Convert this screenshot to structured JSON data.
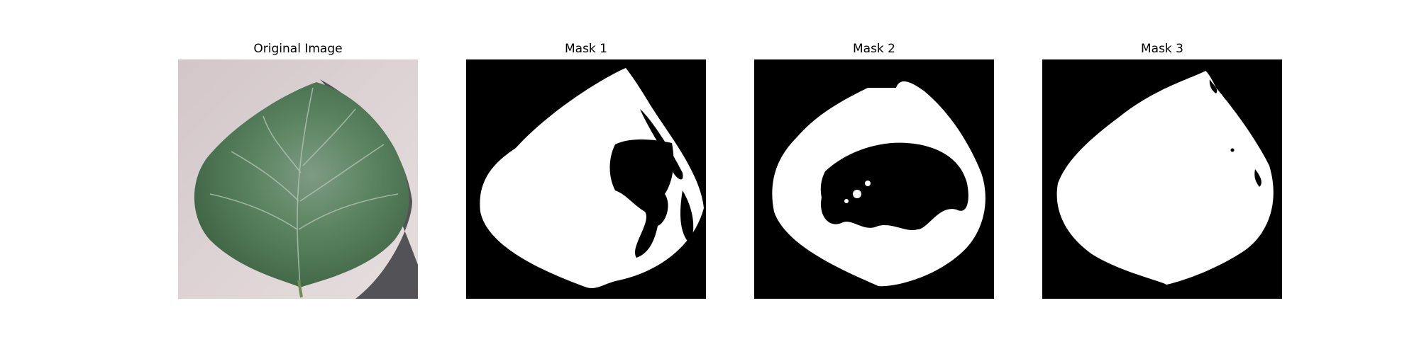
{
  "figure": {
    "panels": [
      {
        "title": "Original Image"
      },
      {
        "title": "Mask 1"
      },
      {
        "title": "Mask 2"
      },
      {
        "title": "Mask 3"
      }
    ]
  },
  "colors": {
    "background": "#d9cfd0",
    "leaf": "#4f7a56",
    "leaf_dark": "#3e6444",
    "leaf_vein": "#a9c1ad",
    "shadow": "#3a3a3f",
    "mask_fg": "#ffffff",
    "mask_bg": "#000000"
  }
}
